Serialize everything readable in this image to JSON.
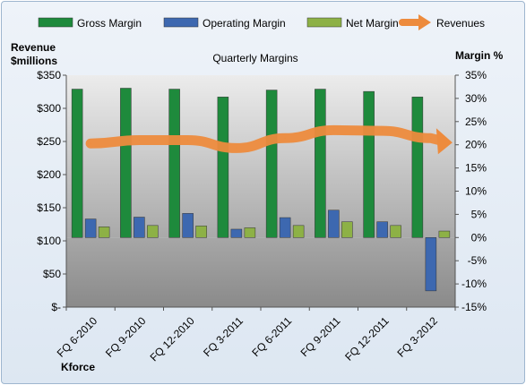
{
  "chart_data": {
    "type": "bar",
    "title": "Quarterly Margins",
    "left_axis_title": [
      "Revenue",
      "$millions"
    ],
    "right_axis_title": "Margin %",
    "company": "Kforce",
    "categories": [
      "FQ 6-2010",
      "FQ 9-2010",
      "FQ 12-2010",
      "FQ 3-2011",
      "FQ 6-2011",
      "FQ 9-2011",
      "FQ 12-2011",
      "FQ 3-2012"
    ],
    "left_ticks": [
      "$350",
      "$300",
      "$250",
      "$200",
      "$150",
      "$100",
      "$50",
      "$-"
    ],
    "right_ticks": [
      "35%",
      "30%",
      "25%",
      "20%",
      "15%",
      "10%",
      "5%",
      "0%",
      "-5%",
      "-10%",
      "-15%"
    ],
    "left_ylim": [
      0,
      350
    ],
    "right_ylim": [
      -15,
      35
    ],
    "grid": false,
    "legend_position": "top",
    "series": [
      {
        "name": "Gross Margin",
        "axis": "right",
        "kind": "bar",
        "color": "#1e8a3c",
        "values": [
          32,
          32.2,
          32,
          30.3,
          31.8,
          32,
          31.5,
          30.3
        ]
      },
      {
        "name": "Operating Margin",
        "axis": "right",
        "kind": "bar",
        "color": "#3d68b0",
        "values": [
          4,
          4.4,
          5.2,
          1.8,
          4.3,
          5.9,
          3.4,
          -11.5
        ]
      },
      {
        "name": "Net Margin",
        "axis": "right",
        "kind": "bar",
        "color": "#8db146",
        "values": [
          2.3,
          2.6,
          2.5,
          2.1,
          2.6,
          3.4,
          2.6,
          1.4
        ]
      },
      {
        "name": "Revenues",
        "axis": "left",
        "kind": "line",
        "color": "#ed8b3d",
        "values": [
          247,
          252,
          252,
          240,
          255,
          267,
          266,
          255
        ]
      }
    ]
  }
}
